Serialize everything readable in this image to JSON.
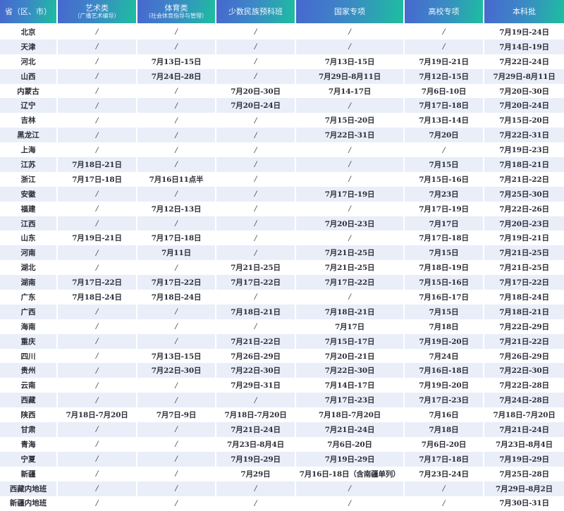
{
  "table": {
    "headers": [
      {
        "label": "省（区、市）",
        "sub": ""
      },
      {
        "label": "艺术类",
        "sub": "（广播艺术编导）"
      },
      {
        "label": "体育类",
        "sub": "（社会体育指导与管理）"
      },
      {
        "label": "少数民族预科班",
        "sub": ""
      },
      {
        "label": "国家专项",
        "sub": ""
      },
      {
        "label": "高校专项",
        "sub": ""
      },
      {
        "label": "本科批",
        "sub": ""
      }
    ],
    "rows": [
      [
        "北京",
        "/",
        "/",
        "/",
        "/",
        "/",
        "7月19日-24日"
      ],
      [
        "天津",
        "/",
        "/",
        "/",
        "/",
        "/",
        "7月14日-19日"
      ],
      [
        "河北",
        "/",
        "7月13日-15日",
        "/",
        "7月13日-15日",
        "7月19日-21日",
        "7月22日-24日"
      ],
      [
        "山西",
        "/",
        "7月24日-28日",
        "/",
        "7月29日-8月11日",
        "7月12日-15日",
        "7月29日-8月11日"
      ],
      [
        "内蒙古",
        "/",
        "/",
        "7月20日-30日",
        "7月14-17日",
        "7月6日-10日",
        "7月20日-30日"
      ],
      [
        "辽宁",
        "/",
        "/",
        "7月20日-24日",
        "/",
        "7月17日-18日",
        "7月20日-24日"
      ],
      [
        "吉林",
        "/",
        "/",
        "/",
        "7月15日-20日",
        "7月13日-14日",
        "7月15日-20日"
      ],
      [
        "黑龙江",
        "/",
        "/",
        "/",
        "7月22日-31日",
        "7月20日",
        "7月22日-31日"
      ],
      [
        "上海",
        "/",
        "/",
        "/",
        "/",
        "/",
        "7月19日-23日"
      ],
      [
        "江苏",
        "7月18日-21日",
        "/",
        "/",
        "/",
        "7月15日",
        "7月18日-21日"
      ],
      [
        "浙江",
        "7月17日-18日",
        "7月16日11点半",
        "/",
        "/",
        "7月15日-16日",
        "7月21日-22日"
      ],
      [
        "安徽",
        "/",
        "/",
        "/",
        "7月17日-19日",
        "7月23日",
        "7月25日-30日"
      ],
      [
        "福建",
        "/",
        "7月12日-13日",
        "/",
        "/",
        "7月17日-19日",
        "7月22日-26日"
      ],
      [
        "江西",
        "/",
        "/",
        "/",
        "7月20日-23日",
        "7月17日",
        "7月20日-23日"
      ],
      [
        "山东",
        "7月19日-21日",
        "7月17日-18日",
        "/",
        "/",
        "7月17日-18日",
        "7月19日-21日"
      ],
      [
        "河南",
        "/",
        "7月11日",
        "/",
        "7月21日-25日",
        "7月15日",
        "7月21日-25日"
      ],
      [
        "湖北",
        "/",
        "/",
        "7月21日-25日",
        "7月21日-25日",
        "7月18日-19日",
        "7月21日-25日"
      ],
      [
        "湖南",
        "7月17日-22日",
        "7月17日-22日",
        "7月17日-22日",
        "7月17日-22日",
        "7月15日-16日",
        "7月17日-22日"
      ],
      [
        "广东",
        "7月18日-24日",
        "7月18日-24日",
        "/",
        "/",
        "7月16日-17日",
        "7月18日-24日"
      ],
      [
        "广西",
        "/",
        "/",
        "7月18日-21日",
        "7月18日-21日",
        "7月15日",
        "7月18日-21日"
      ],
      [
        "海南",
        "/",
        "/",
        "/",
        "7月17日",
        "7月18日",
        "7月22日-29日"
      ],
      [
        "重庆",
        "/",
        "/",
        "7月21日-22日",
        "7月15日-17日",
        "7月19日-20日",
        "7月21日-22日"
      ],
      [
        "四川",
        "/",
        "7月13日-15日",
        "7月26日-29日",
        "7月20日-21日",
        "7月24日",
        "7月26日-29日"
      ],
      [
        "贵州",
        "/",
        "7月22日-30日",
        "7月22日-30日",
        "7月22日-30日",
        "7月16日-18日",
        "7月22日-30日"
      ],
      [
        "云南",
        "/",
        "/",
        "7月29日-31日",
        "7月14日-17日",
        "7月19日-20日",
        "7月22日-28日"
      ],
      [
        "西藏",
        "/",
        "/",
        "/",
        "7月17日-23日",
        "7月17日-23日",
        "7月24日-28日"
      ],
      [
        "陕西",
        "7月18日-7月20日",
        "7月7日-9日",
        "7月18日-7月20日",
        "7月18日-7月20日",
        "7月16日",
        "7月18日-7月20日"
      ],
      [
        "甘肃",
        "/",
        "/",
        "7月21日-24日",
        "7月21日-24日",
        "7月18日",
        "7月21日-24日"
      ],
      [
        "青海",
        "/",
        "/",
        "7月23日-8月4日",
        "7月6日-20日",
        "7月6日-20日",
        "7月23日-8月4日"
      ],
      [
        "宁夏",
        "/",
        "/",
        "7月19日-29日",
        "7月19日-29日",
        "7月17日-18日",
        "7月19日-29日"
      ],
      [
        "新疆",
        "/",
        "/",
        "7月29日",
        "7月16日-18日（含南疆单列）",
        "7月23日-24日",
        "7月25日-28日"
      ],
      [
        "西藏内地班",
        "/",
        "/",
        "/",
        "/",
        "/",
        "7月29日-8月2日"
      ],
      [
        "新疆内地班",
        "/",
        "/",
        "/",
        "/",
        "/",
        "7月30日-31日"
      ]
    ]
  },
  "colors": {
    "header_blue": "#4767cf",
    "header_teal": "#1dbf9f",
    "stripe": "#e9eef9"
  }
}
